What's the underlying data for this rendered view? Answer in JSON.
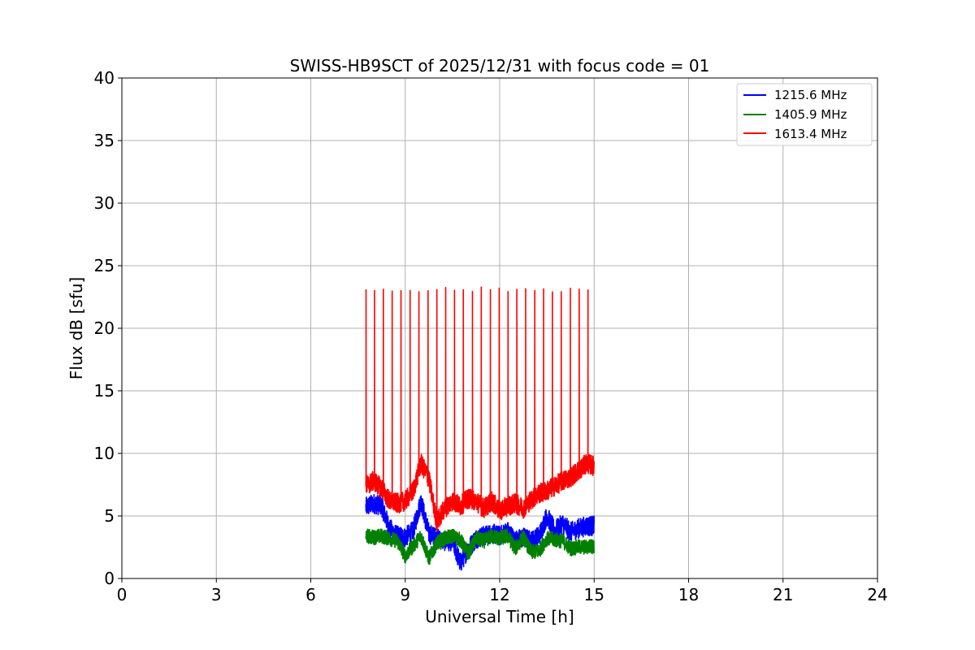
{
  "chart_data": {
    "type": "line",
    "title": "SWISS-HB9SCT of 2025/12/31 with focus code = 01",
    "xlabel": "Universal Time [h]",
    "ylabel": "Flux dB [sfu]",
    "xlim": [
      0,
      24
    ],
    "ylim": [
      0,
      40
    ],
    "xticks": [
      0,
      3,
      6,
      9,
      12,
      15,
      18,
      21,
      24
    ],
    "yticks": [
      0,
      5,
      10,
      15,
      20,
      25,
      30,
      35,
      40
    ],
    "grid": true,
    "legend_position": "top-right",
    "x_range_of_data": [
      7.75,
      15.0
    ],
    "series": [
      {
        "name": "1215.6 MHz",
        "color": "#0000ff",
        "x": [
          7.75,
          8.0,
          8.25,
          8.5,
          8.75,
          9.0,
          9.25,
          9.5,
          9.75,
          10.0,
          10.25,
          10.5,
          10.75,
          11.0,
          11.25,
          11.5,
          11.75,
          12.0,
          12.25,
          12.5,
          12.75,
          13.0,
          13.25,
          13.5,
          13.75,
          14.0,
          14.25,
          14.5,
          14.75,
          15.0
        ],
        "y": [
          5.7,
          6.0,
          5.8,
          4.0,
          3.4,
          3.3,
          3.8,
          6.2,
          3.6,
          3.2,
          3.0,
          3.0,
          1.2,
          2.4,
          3.2,
          3.4,
          3.6,
          3.4,
          3.8,
          3.0,
          3.3,
          3.0,
          3.4,
          5.0,
          3.8,
          4.4,
          3.7,
          4.0,
          4.2,
          4.2
        ],
        "noise": 0.8
      },
      {
        "name": "1405.9 MHz",
        "color": "#008000",
        "x": [
          7.75,
          8.0,
          8.25,
          8.5,
          8.75,
          9.0,
          9.25,
          9.5,
          9.75,
          10.0,
          10.25,
          10.5,
          10.75,
          11.0,
          11.25,
          11.5,
          11.75,
          12.0,
          12.25,
          12.5,
          12.75,
          13.0,
          13.25,
          13.5,
          13.75,
          14.0,
          14.25,
          14.5,
          14.75,
          15.0
        ],
        "y": [
          3.4,
          3.3,
          3.4,
          3.2,
          3.0,
          1.8,
          2.6,
          3.4,
          1.6,
          2.8,
          3.2,
          3.4,
          3.1,
          2.0,
          3.2,
          3.0,
          3.4,
          3.2,
          3.4,
          2.4,
          3.3,
          2.1,
          2.2,
          3.2,
          3.1,
          3.0,
          2.4,
          2.5,
          2.5,
          2.6
        ],
        "noise": 0.6
      },
      {
        "name": "1613.4 MHz",
        "color": "#ff0000",
        "x": [
          7.75,
          8.0,
          8.25,
          8.5,
          8.75,
          9.0,
          9.25,
          9.5,
          9.75,
          10.0,
          10.25,
          10.5,
          10.75,
          11.0,
          11.25,
          11.5,
          11.75,
          12.0,
          12.25,
          12.5,
          12.75,
          13.0,
          13.25,
          13.5,
          13.75,
          14.0,
          14.25,
          14.5,
          14.75,
          15.0
        ],
        "y": [
          7.4,
          7.8,
          7.2,
          6.2,
          6.0,
          6.2,
          7.0,
          9.2,
          8.0,
          4.5,
          5.6,
          6.2,
          5.8,
          6.4,
          6.2,
          5.6,
          6.2,
          5.4,
          5.8,
          6.0,
          5.6,
          6.3,
          6.8,
          7.0,
          7.4,
          7.8,
          8.1,
          8.6,
          9.2,
          9.0
        ],
        "noise": 0.8,
        "spikes": {
          "peak": 23.1,
          "x": [
            7.75,
            8.02,
            8.3,
            8.58,
            8.86,
            9.15,
            9.43,
            9.72,
            10.0,
            10.28,
            10.56,
            10.84,
            11.13,
            11.41,
            11.7,
            11.98,
            12.26,
            12.54,
            12.82,
            13.11,
            13.39,
            13.67,
            13.95,
            14.24,
            14.52,
            14.8
          ]
        }
      }
    ]
  }
}
